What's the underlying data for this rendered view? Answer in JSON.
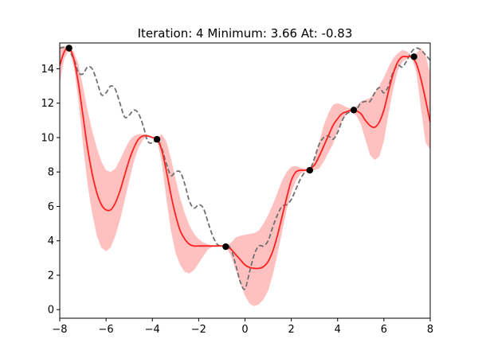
{
  "chart_data": {
    "type": "line",
    "title": "Iteration: 4   Minimum: 3.66   At: -0.83",
    "xlabel": "",
    "ylabel": "",
    "xlim": [
      -8,
      8
    ],
    "ylim": [
      -0.5,
      15.5
    ],
    "xticks": [
      -8,
      -6,
      -4,
      -2,
      0,
      2,
      4,
      6,
      8
    ],
    "yticks": [
      0,
      2,
      4,
      6,
      8,
      10,
      12,
      14
    ],
    "xtick_labels": [
      "−8",
      "−6",
      "−4",
      "−2",
      "0",
      "2",
      "4",
      "6",
      "8"
    ],
    "ytick_labels": [
      "0",
      "2",
      "4",
      "6",
      "8",
      "10",
      "12",
      "14"
    ],
    "grid": false,
    "legend": "none",
    "colors": {
      "mean": "#ff2020",
      "band": "#ff9a9a",
      "objective": "#707070",
      "points": "#000000"
    },
    "series": [
      {
        "role": "objective",
        "style": "dashed",
        "x": [
          -8.0,
          -7.7,
          -7.4,
          -7.2,
          -7.0,
          -6.8,
          -6.6,
          -6.4,
          -6.2,
          -6.0,
          -5.8,
          -5.6,
          -5.4,
          -5.2,
          -5.0,
          -4.8,
          -4.6,
          -4.4,
          -4.2,
          -4.0,
          -3.8,
          -3.6,
          -3.4,
          -3.2,
          -3.0,
          -2.8,
          -2.6,
          -2.4,
          -2.2,
          -2.0,
          -1.8,
          -1.6,
          -1.4,
          -1.2,
          -1.0,
          -0.8,
          -0.6,
          -0.4,
          -0.2,
          0.0,
          0.2,
          0.4,
          0.6,
          0.8,
          1.0,
          1.2,
          1.4,
          1.6,
          1.8,
          2.0,
          2.2,
          2.4,
          2.6,
          2.8,
          3.0,
          3.2,
          3.4,
          3.6,
          3.8,
          4.0,
          4.2,
          4.4,
          4.6,
          4.8,
          5.0,
          5.2,
          5.4,
          5.6,
          5.8,
          6.0,
          6.2,
          6.4,
          6.6,
          6.8,
          7.0,
          7.2,
          7.4,
          7.6,
          7.8,
          8.0
        ],
        "y": [
          15.2,
          15.2,
          14.6,
          13.8,
          13.7,
          14.1,
          14.0,
          13.3,
          12.5,
          12.6,
          13.0,
          12.8,
          12.0,
          11.2,
          11.3,
          11.6,
          11.4,
          10.7,
          9.8,
          9.7,
          9.9,
          9.4,
          8.5,
          7.8,
          8.0,
          8.0,
          7.3,
          6.3,
          5.9,
          6.1,
          5.9,
          5.1,
          4.3,
          3.8,
          3.7,
          3.8,
          3.5,
          2.6,
          1.6,
          1.2,
          2.2,
          3.2,
          3.7,
          3.7,
          4.0,
          4.8,
          5.5,
          6.0,
          6.1,
          6.4,
          7.0,
          7.6,
          8.0,
          8.1,
          8.8,
          9.6,
          10.0,
          10.1,
          9.9,
          10.3,
          11.0,
          11.4,
          11.5,
          11.6,
          12.0,
          12.1,
          12.1,
          12.6,
          12.9,
          12.6,
          13.0,
          13.8,
          14.2,
          14.1,
          14.5,
          15.0,
          15.2,
          15.1,
          14.8,
          14.5
        ]
      },
      {
        "role": "posterior-mean",
        "style": "solid",
        "x": [
          -8.0,
          -7.8,
          -7.6,
          -7.4,
          -7.2,
          -7.0,
          -6.8,
          -6.6,
          -6.4,
          -6.2,
          -6.0,
          -5.8,
          -5.6,
          -5.4,
          -5.2,
          -5.0,
          -4.8,
          -4.6,
          -4.4,
          -4.2,
          -4.0,
          -3.8,
          -3.6,
          -3.4,
          -3.2,
          -3.0,
          -2.8,
          -2.6,
          -2.4,
          -2.2,
          -2.0,
          -1.8,
          -1.6,
          -1.4,
          -1.2,
          -1.0,
          -0.8,
          -0.6,
          -0.4,
          -0.2,
          0.0,
          0.2,
          0.4,
          0.6,
          0.8,
          1.0,
          1.2,
          1.4,
          1.6,
          1.8,
          2.0,
          2.2,
          2.4,
          2.6,
          2.8,
          3.0,
          3.2,
          3.4,
          3.6,
          3.8,
          4.0,
          4.2,
          4.4,
          4.6,
          4.8,
          5.0,
          5.2,
          5.4,
          5.6,
          5.8,
          6.0,
          6.2,
          6.4,
          6.6,
          6.8,
          7.0,
          7.2,
          7.4,
          7.6,
          7.8,
          8.0
        ],
        "y": [
          14.2,
          15.0,
          15.2,
          14.6,
          13.2,
          11.3,
          9.4,
          7.9,
          6.8,
          6.1,
          5.8,
          5.8,
          6.2,
          6.9,
          7.8,
          8.7,
          9.4,
          9.9,
          10.1,
          10.1,
          10.0,
          9.9,
          9.3,
          8.1,
          6.7,
          5.5,
          4.6,
          4.1,
          3.8,
          3.7,
          3.7,
          3.7,
          3.7,
          3.7,
          3.7,
          3.7,
          3.66,
          3.5,
          3.2,
          2.9,
          2.6,
          2.45,
          2.4,
          2.4,
          2.5,
          2.8,
          3.4,
          4.3,
          5.4,
          6.5,
          7.5,
          8.0,
          8.1,
          8.1,
          8.2,
          8.4,
          8.9,
          9.5,
          10.1,
          10.7,
          11.1,
          11.4,
          11.5,
          11.6,
          11.55,
          11.4,
          11.0,
          10.7,
          10.6,
          10.9,
          11.6,
          12.7,
          13.7,
          14.4,
          14.7,
          14.7,
          14.7,
          14.3,
          13.4,
          12.2,
          10.9
        ]
      }
    ],
    "confidence_band": {
      "x": [
        -8.0,
        -7.8,
        -7.6,
        -7.4,
        -7.2,
        -7.0,
        -6.8,
        -6.6,
        -6.4,
        -6.2,
        -6.0,
        -5.8,
        -5.6,
        -5.4,
        -5.2,
        -5.0,
        -4.8,
        -4.6,
        -4.4,
        -4.2,
        -4.0,
        -3.8,
        -3.6,
        -3.4,
        -3.2,
        -3.0,
        -2.8,
        -2.6,
        -2.4,
        -2.2,
        -2.0,
        -1.8,
        -1.6,
        -1.4,
        -1.2,
        -1.0,
        -0.8,
        -0.6,
        -0.4,
        -0.2,
        0.0,
        0.2,
        0.4,
        0.6,
        0.8,
        1.0,
        1.2,
        1.4,
        1.6,
        1.8,
        2.0,
        2.2,
        2.4,
        2.6,
        2.8,
        3.0,
        3.2,
        3.4,
        3.6,
        3.8,
        4.0,
        4.2,
        4.4,
        4.6,
        4.8,
        5.0,
        5.2,
        5.4,
        5.6,
        5.8,
        6.0,
        6.2,
        6.4,
        6.6,
        6.8,
        7.0,
        7.2,
        7.4,
        7.6,
        7.8,
        8.0
      ],
      "upper": [
        15.3,
        15.3,
        15.25,
        15.0,
        14.3,
        13.0,
        11.6,
        10.4,
        9.4,
        8.6,
        8.1,
        8.0,
        8.2,
        8.7,
        9.3,
        9.8,
        10.1,
        10.2,
        10.2,
        10.1,
        10.0,
        9.95,
        10.2,
        9.8,
        8.8,
        7.6,
        6.5,
        5.6,
        4.9,
        4.4,
        4.1,
        3.9,
        3.8,
        3.7,
        3.7,
        3.7,
        3.7,
        3.9,
        4.2,
        4.3,
        4.35,
        4.4,
        4.45,
        4.6,
        5.0,
        5.5,
        6.1,
        6.8,
        7.5,
        8.0,
        8.3,
        8.35,
        8.25,
        8.2,
        8.2,
        8.7,
        9.7,
        10.7,
        11.4,
        11.9,
        12.0,
        11.9,
        11.75,
        11.7,
        11.8,
        12.1,
        12.2,
        12.3,
        12.6,
        13.0,
        13.5,
        14.1,
        14.6,
        14.9,
        15.1,
        15.0,
        14.75,
        14.9,
        15.2,
        14.8,
        13.7
      ],
      "lower": [
        13.2,
        14.6,
        15.1,
        14.2,
        12.2,
        9.6,
        7.3,
        5.6,
        4.3,
        3.6,
        3.4,
        3.6,
        4.3,
        5.2,
        6.3,
        7.5,
        8.6,
        9.4,
        9.9,
        10.05,
        10.0,
        9.85,
        8.6,
        6.5,
        4.6,
        3.3,
        2.6,
        2.2,
        2.1,
        2.3,
        2.7,
        3.1,
        3.5,
        3.65,
        3.7,
        3.7,
        3.62,
        3.1,
        2.3,
        1.5,
        0.8,
        0.35,
        0.2,
        0.3,
        0.6,
        1.1,
        2.0,
        3.2,
        4.5,
        5.8,
        6.8,
        7.5,
        7.9,
        8.05,
        8.1,
        8.1,
        8.2,
        8.6,
        9.1,
        9.6,
        10.4,
        11.0,
        11.4,
        11.5,
        11.3,
        10.8,
        9.9,
        9.0,
        8.7,
        8.9,
        9.8,
        11.4,
        12.8,
        13.9,
        14.4,
        14.6,
        14.65,
        13.8,
        11.7,
        9.7,
        9.3
      ]
    },
    "observations": {
      "x": [
        -7.6,
        -3.8,
        -0.83,
        2.8,
        4.7,
        7.3
      ],
      "y": [
        15.2,
        9.9,
        3.66,
        8.1,
        11.6,
        14.7
      ]
    }
  }
}
